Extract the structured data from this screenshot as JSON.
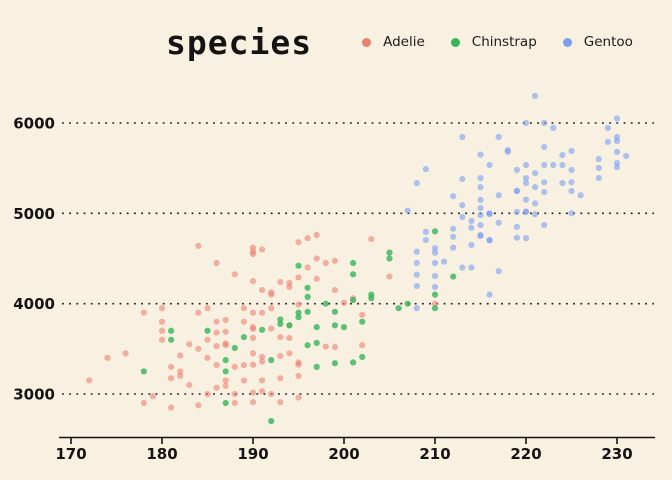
{
  "chart_data": {
    "type": "scatter",
    "legend_title": "species",
    "legend_position": "top",
    "xlabel": "",
    "ylabel": "",
    "x_ticks": [
      170,
      180,
      190,
      200,
      210,
      220,
      230
    ],
    "y_ticks": [
      3000,
      4000,
      5000,
      6000
    ],
    "xlim": [
      168.7,
      234.2
    ],
    "ylim": [
      2550,
      6500
    ],
    "grid": "horizontal-dotted",
    "background_color": "#f8f1e2",
    "text_color": "#141414",
    "grid_color": "#1c1c1c",
    "series": [
      {
        "name": "Adelie",
        "color": "#ee8070",
        "fill_opacity": 0.6,
        "points": [
          [
            172,
            3150
          ],
          [
            174,
            3400
          ],
          [
            176,
            3450
          ],
          [
            178,
            3900
          ],
          [
            178,
            2900
          ],
          [
            179,
            2975
          ],
          [
            180,
            3950
          ],
          [
            180,
            3800
          ],
          [
            180,
            3700
          ],
          [
            180,
            3600
          ],
          [
            181,
            3300
          ],
          [
            181,
            3175
          ],
          [
            181,
            2850
          ],
          [
            182,
            3425
          ],
          [
            182,
            3250
          ],
          [
            182,
            3200
          ],
          [
            183,
            3550
          ],
          [
            183,
            3100
          ],
          [
            184,
            3900
          ],
          [
            184,
            3500
          ],
          [
            184,
            2875
          ],
          [
            184,
            4640
          ],
          [
            185,
            3950
          ],
          [
            185,
            3600
          ],
          [
            185,
            3400
          ],
          [
            185,
            3000
          ],
          [
            186,
            4450
          ],
          [
            186,
            3800
          ],
          [
            186,
            3680
          ],
          [
            186,
            3530
          ],
          [
            186,
            3320
          ],
          [
            186,
            3070
          ],
          [
            187,
            3820
          ],
          [
            187,
            3690
          ],
          [
            187,
            3560
          ],
          [
            187,
            3540
          ],
          [
            187,
            3150
          ],
          [
            187,
            3090
          ],
          [
            188,
            4325
          ],
          [
            188,
            3300
          ],
          [
            188,
            3000
          ],
          [
            188,
            2900
          ],
          [
            189,
            3950
          ],
          [
            189,
            3800
          ],
          [
            189,
            3320
          ],
          [
            189,
            3150
          ],
          [
            190,
            4620
          ],
          [
            190,
            4575
          ],
          [
            190,
            4550
          ],
          [
            190,
            4250
          ],
          [
            190,
            3900
          ],
          [
            190,
            3740
          ],
          [
            190,
            3720
          ],
          [
            190,
            3620
          ],
          [
            190,
            3450
          ],
          [
            190,
            3325
          ],
          [
            190,
            3015
          ],
          [
            190,
            2910
          ],
          [
            191,
            4600
          ],
          [
            191,
            4150
          ],
          [
            191,
            3900
          ],
          [
            191,
            3410
          ],
          [
            191,
            3360
          ],
          [
            191,
            3150
          ],
          [
            191,
            3030
          ],
          [
            192,
            4125
          ],
          [
            192,
            4100
          ],
          [
            192,
            3950
          ],
          [
            192,
            3725
          ],
          [
            192,
            3000
          ],
          [
            193,
            4240
          ],
          [
            193,
            3630
          ],
          [
            193,
            3420
          ],
          [
            193,
            3175
          ],
          [
            193,
            2910
          ],
          [
            194,
            4230
          ],
          [
            194,
            4185
          ],
          [
            194,
            3760
          ],
          [
            194,
            3620
          ],
          [
            194,
            3450
          ],
          [
            195,
            4680
          ],
          [
            195,
            4290
          ],
          [
            195,
            3990
          ],
          [
            195,
            3350
          ],
          [
            195,
            3325
          ],
          [
            195,
            3200
          ],
          [
            195,
            2960
          ],
          [
            196,
            4725
          ],
          [
            196,
            4400
          ],
          [
            197,
            4760
          ],
          [
            197,
            4500
          ],
          [
            197,
            4275
          ],
          [
            198,
            4450
          ],
          [
            198,
            3525
          ],
          [
            199,
            4475
          ],
          [
            199,
            4150
          ],
          [
            199,
            3520
          ],
          [
            200,
            4010
          ],
          [
            201,
            4060
          ],
          [
            202,
            3875
          ],
          [
            202,
            3540
          ],
          [
            203,
            4715
          ],
          [
            205,
            4300
          ],
          [
            210,
            4000
          ]
        ]
      },
      {
        "name": "Chinstrap",
        "color": "#35b559",
        "fill_opacity": 0.8,
        "points": [
          [
            178,
            3250
          ],
          [
            181,
            3700
          ],
          [
            181,
            3600
          ],
          [
            185,
            3700
          ],
          [
            187,
            3375
          ],
          [
            187,
            3250
          ],
          [
            187,
            2900
          ],
          [
            188,
            3510
          ],
          [
            189,
            3630
          ],
          [
            191,
            3710
          ],
          [
            192,
            3375
          ],
          [
            192,
            2700
          ],
          [
            193,
            3825
          ],
          [
            193,
            3775
          ],
          [
            194,
            3760
          ],
          [
            195,
            4420
          ],
          [
            195,
            3900
          ],
          [
            195,
            3850
          ],
          [
            196,
            4175
          ],
          [
            196,
            4075
          ],
          [
            196,
            3910
          ],
          [
            196,
            3540
          ],
          [
            197,
            3740
          ],
          [
            197,
            3565
          ],
          [
            197,
            3300
          ],
          [
            198,
            4000
          ],
          [
            199,
            3910
          ],
          [
            199,
            3760
          ],
          [
            199,
            3340
          ],
          [
            200,
            3740
          ],
          [
            201,
            4450
          ],
          [
            201,
            4325
          ],
          [
            201,
            4040
          ],
          [
            201,
            3350
          ],
          [
            202,
            3800
          ],
          [
            202,
            3410
          ],
          [
            203,
            4100
          ],
          [
            203,
            4060
          ],
          [
            205,
            4565
          ],
          [
            205,
            4500
          ],
          [
            206,
            3950
          ],
          [
            207,
            4000
          ],
          [
            210,
            4800
          ],
          [
            210,
            4100
          ],
          [
            210,
            3950
          ],
          [
            212,
            4300
          ]
        ]
      },
      {
        "name": "Gentoo",
        "color": "#7b9ef2",
        "fill_opacity": 0.6,
        "points": [
          [
            207,
            5030
          ],
          [
            208,
            5335
          ],
          [
            208,
            4575
          ],
          [
            208,
            4450
          ],
          [
            208,
            4320
          ],
          [
            208,
            4195
          ],
          [
            208,
            3950
          ],
          [
            209,
            5490
          ],
          [
            209,
            4795
          ],
          [
            209,
            4705
          ],
          [
            210,
            4565
          ],
          [
            210,
            4450
          ],
          [
            210,
            4305
          ],
          [
            210,
            4185
          ],
          [
            210,
            4615
          ],
          [
            211,
            4465
          ],
          [
            212,
            5190
          ],
          [
            212,
            4830
          ],
          [
            212,
            4740
          ],
          [
            212,
            4620
          ],
          [
            213,
            5845
          ],
          [
            213,
            5380
          ],
          [
            213,
            5090
          ],
          [
            213,
            4960
          ],
          [
            213,
            4400
          ],
          [
            214,
            4915
          ],
          [
            214,
            4840
          ],
          [
            214,
            4650
          ],
          [
            214,
            4400
          ],
          [
            215,
            5650
          ],
          [
            215,
            5390
          ],
          [
            215,
            5290
          ],
          [
            215,
            5150
          ],
          [
            215,
            5060
          ],
          [
            215,
            4980
          ],
          [
            215,
            4870
          ],
          [
            215,
            4760
          ],
          [
            215,
            4750
          ],
          [
            216,
            5535
          ],
          [
            216,
            5000
          ],
          [
            216,
            4990
          ],
          [
            216,
            4705
          ],
          [
            216,
            4700
          ],
          [
            216,
            4100
          ],
          [
            217,
            5845
          ],
          [
            217,
            5200
          ],
          [
            217,
            4895
          ],
          [
            217,
            4360
          ],
          [
            218,
            5700
          ],
          [
            218,
            5680
          ],
          [
            219,
            5480
          ],
          [
            219,
            5250
          ],
          [
            219,
            5245
          ],
          [
            219,
            5015
          ],
          [
            219,
            4850
          ],
          [
            219,
            4730
          ],
          [
            220,
            6000
          ],
          [
            220,
            5535
          ],
          [
            220,
            5390
          ],
          [
            220,
            5335
          ],
          [
            220,
            5150
          ],
          [
            220,
            5020
          ],
          [
            220,
            5015
          ],
          [
            220,
            4725
          ],
          [
            221,
            6300
          ],
          [
            221,
            5445
          ],
          [
            221,
            5290
          ],
          [
            221,
            5110
          ],
          [
            221,
            4990
          ],
          [
            222,
            6000
          ],
          [
            222,
            5735
          ],
          [
            222,
            5535
          ],
          [
            222,
            5345
          ],
          [
            222,
            5235
          ],
          [
            222,
            4870
          ],
          [
            223,
            5945
          ],
          [
            223,
            5535
          ],
          [
            224,
            5645
          ],
          [
            224,
            5535
          ],
          [
            224,
            5335
          ],
          [
            225,
            5690
          ],
          [
            225,
            5480
          ],
          [
            225,
            5345
          ],
          [
            225,
            5247
          ],
          [
            225,
            5000
          ],
          [
            226,
            5200
          ],
          [
            228,
            5600
          ],
          [
            228,
            5502
          ],
          [
            228,
            5390
          ],
          [
            229,
            5945
          ],
          [
            229,
            5790
          ],
          [
            230,
            6050
          ],
          [
            230,
            5845
          ],
          [
            230,
            5800
          ],
          [
            230,
            5680
          ],
          [
            230,
            5557
          ],
          [
            230,
            5510
          ],
          [
            231,
            5635
          ]
        ]
      }
    ]
  }
}
